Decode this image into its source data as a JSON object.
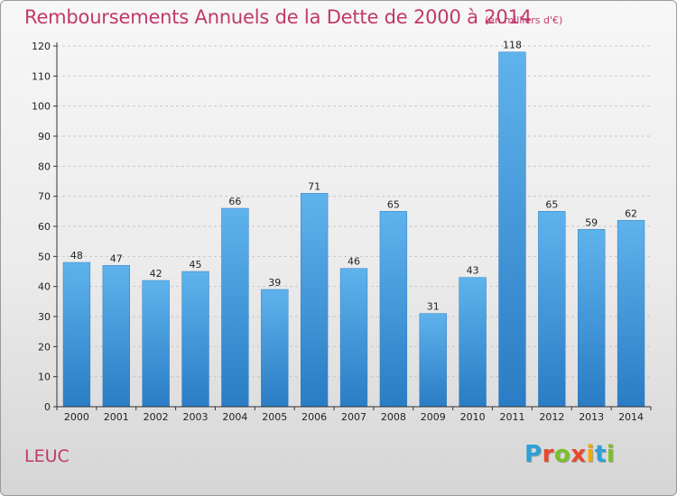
{
  "title": "Remboursements Annuels de la Dette de 2000 à 2014",
  "unit": "(en milliers d'€)",
  "commune": "LEUC",
  "logo": {
    "letters": [
      "P",
      "r",
      "o",
      "x",
      "i",
      "t",
      "i"
    ],
    "colors": [
      "#2e9fd8",
      "#e8482c",
      "#7bbf2a",
      "#e8482c",
      "#f2a800",
      "#2e9fd8",
      "#7bbf2a"
    ]
  },
  "chart_data": {
    "type": "bar",
    "categories": [
      "2000",
      "2001",
      "2002",
      "2003",
      "2004",
      "2005",
      "2006",
      "2007",
      "2008",
      "2009",
      "2010",
      "2011",
      "2012",
      "2013",
      "2014"
    ],
    "values": [
      48,
      47,
      42,
      45,
      66,
      39,
      71,
      46,
      65,
      31,
      43,
      118,
      65,
      59,
      62
    ],
    "ylim": [
      0,
      120
    ],
    "yticks": [
      0,
      10,
      20,
      30,
      40,
      50,
      60,
      70,
      80,
      90,
      100,
      110,
      120
    ],
    "grid": true,
    "bar_color": "#3b8fd6"
  }
}
